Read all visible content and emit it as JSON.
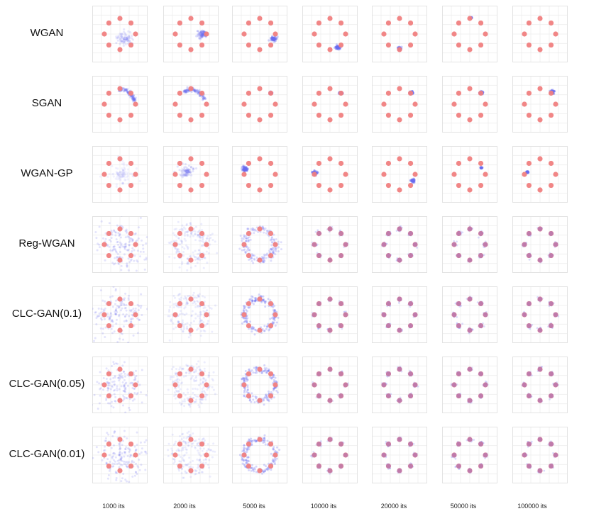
{
  "chart_data": {
    "type": "scatter",
    "grid": true,
    "real_data": {
      "color": "#f07f7f",
      "modes": 8,
      "arrangement": "circle"
    },
    "generated_color": "#6a6cf0",
    "rows": [
      "WGAN",
      "SGAN",
      "WGAN-GP",
      "Reg-WGAN",
      "CLC-GAN(0.1)",
      "CLC-GAN(0.05)",
      "CLC-GAN(0.01)"
    ],
    "columns": [
      "1000 its",
      "2000 its",
      "5000 its",
      "10000 its",
      "20000 its",
      "50000 its",
      "100000 its"
    ],
    "generated": [
      [
        {
          "kind": "blob",
          "angle": -40,
          "r": 0.45,
          "spread": 0.28,
          "alpha": 0.45
        },
        {
          "kind": "blob",
          "angle": 0,
          "r": 0.72,
          "spread": 0.16,
          "alpha": 0.7
        },
        {
          "kind": "blob",
          "angle": -20,
          "r": 0.95,
          "spread": 0.09,
          "alpha": 0.9
        },
        {
          "kind": "blob",
          "angle": -60,
          "r": 1.0,
          "spread": 0.07,
          "alpha": 0.95
        },
        {
          "kind": "blob",
          "angle": -90,
          "r": 0.95,
          "spread": 0.06,
          "alpha": 0.95
        },
        {
          "kind": "blob",
          "angle": 85,
          "r": 1.05,
          "spread": 0.03,
          "alpha": 0.4
        },
        {
          "kind": "none"
        }
      ],
      [
        {
          "kind": "arc",
          "from": 95,
          "to": 10,
          "r": 0.95,
          "alpha": 0.55
        },
        {
          "kind": "arc",
          "from": 120,
          "to": 20,
          "r": 0.92,
          "alpha": 0.6
        },
        {
          "kind": "blob",
          "angle": 45,
          "r": 1.0,
          "spread": 0.05,
          "alpha": 0.95
        },
        {
          "kind": "blob",
          "angle": 45,
          "r": 1.0,
          "spread": 0.05,
          "alpha": 0.95
        },
        {
          "kind": "blob",
          "angle": 45,
          "r": 1.05,
          "spread": 0.06,
          "alpha": 0.95
        },
        {
          "kind": "blob",
          "angle": 45,
          "r": 1.05,
          "spread": 0.06,
          "alpha": 0.95
        },
        {
          "kind": "blob",
          "angle": 45,
          "r": 1.1,
          "spread": 0.07,
          "alpha": 0.95
        }
      ],
      [
        {
          "kind": "blob",
          "angle": 0,
          "r": 0.1,
          "spread": 0.45,
          "alpha": 0.25
        },
        {
          "kind": "blob",
          "angle": 140,
          "r": 0.3,
          "spread": 0.22,
          "alpha": 0.5
        },
        {
          "kind": "blob",
          "angle": 160,
          "r": 1.0,
          "spread": 0.09,
          "alpha": 0.95
        },
        {
          "kind": "blob",
          "angle": 175,
          "r": 1.0,
          "spread": 0.08,
          "alpha": 0.95
        },
        {
          "kind": "blob",
          "angle": -25,
          "r": 0.95,
          "spread": 0.06,
          "alpha": 0.9
        },
        {
          "kind": "blob",
          "angle": 30,
          "r": 0.85,
          "spread": 0.03,
          "alpha": 0.6
        },
        {
          "kind": "blob",
          "angle": 170,
          "r": 0.82,
          "spread": 0.03,
          "alpha": 0.9
        }
      ],
      [
        {
          "kind": "diffuse",
          "alpha": 0.18
        },
        {
          "kind": "ring",
          "spread": 0.3,
          "alpha": 0.25
        },
        {
          "kind": "ring",
          "spread": 0.16,
          "alpha": 0.45
        },
        {
          "kind": "modes",
          "alpha": 0.6
        },
        {
          "kind": "modes",
          "alpha": 0.7
        },
        {
          "kind": "modes",
          "alpha": 0.7
        },
        {
          "kind": "modes",
          "alpha": 0.7
        }
      ],
      [
        {
          "kind": "diffuse",
          "alpha": 0.18
        },
        {
          "kind": "ring",
          "spread": 0.3,
          "alpha": 0.25
        },
        {
          "kind": "ring",
          "spread": 0.12,
          "alpha": 0.55
        },
        {
          "kind": "modes",
          "alpha": 0.6
        },
        {
          "kind": "modes",
          "alpha": 0.7
        },
        {
          "kind": "modes",
          "alpha": 0.7
        },
        {
          "kind": "modes",
          "alpha": 0.7
        }
      ],
      [
        {
          "kind": "diffuse",
          "alpha": 0.18
        },
        {
          "kind": "ring",
          "spread": 0.3,
          "alpha": 0.25
        },
        {
          "kind": "ring",
          "spread": 0.12,
          "alpha": 0.55
        },
        {
          "kind": "modes",
          "alpha": 0.6
        },
        {
          "kind": "modes",
          "alpha": 0.7
        },
        {
          "kind": "modes",
          "alpha": 0.7
        },
        {
          "kind": "modes",
          "alpha": 0.7
        }
      ],
      [
        {
          "kind": "diffuse",
          "alpha": 0.18
        },
        {
          "kind": "ring",
          "spread": 0.3,
          "alpha": 0.25
        },
        {
          "kind": "ring",
          "spread": 0.12,
          "alpha": 0.55
        },
        {
          "kind": "modes",
          "alpha": 0.6
        },
        {
          "kind": "modes",
          "alpha": 0.7
        },
        {
          "kind": "modes",
          "alpha": 0.7
        },
        {
          "kind": "modes",
          "alpha": 0.7
        }
      ]
    ]
  }
}
